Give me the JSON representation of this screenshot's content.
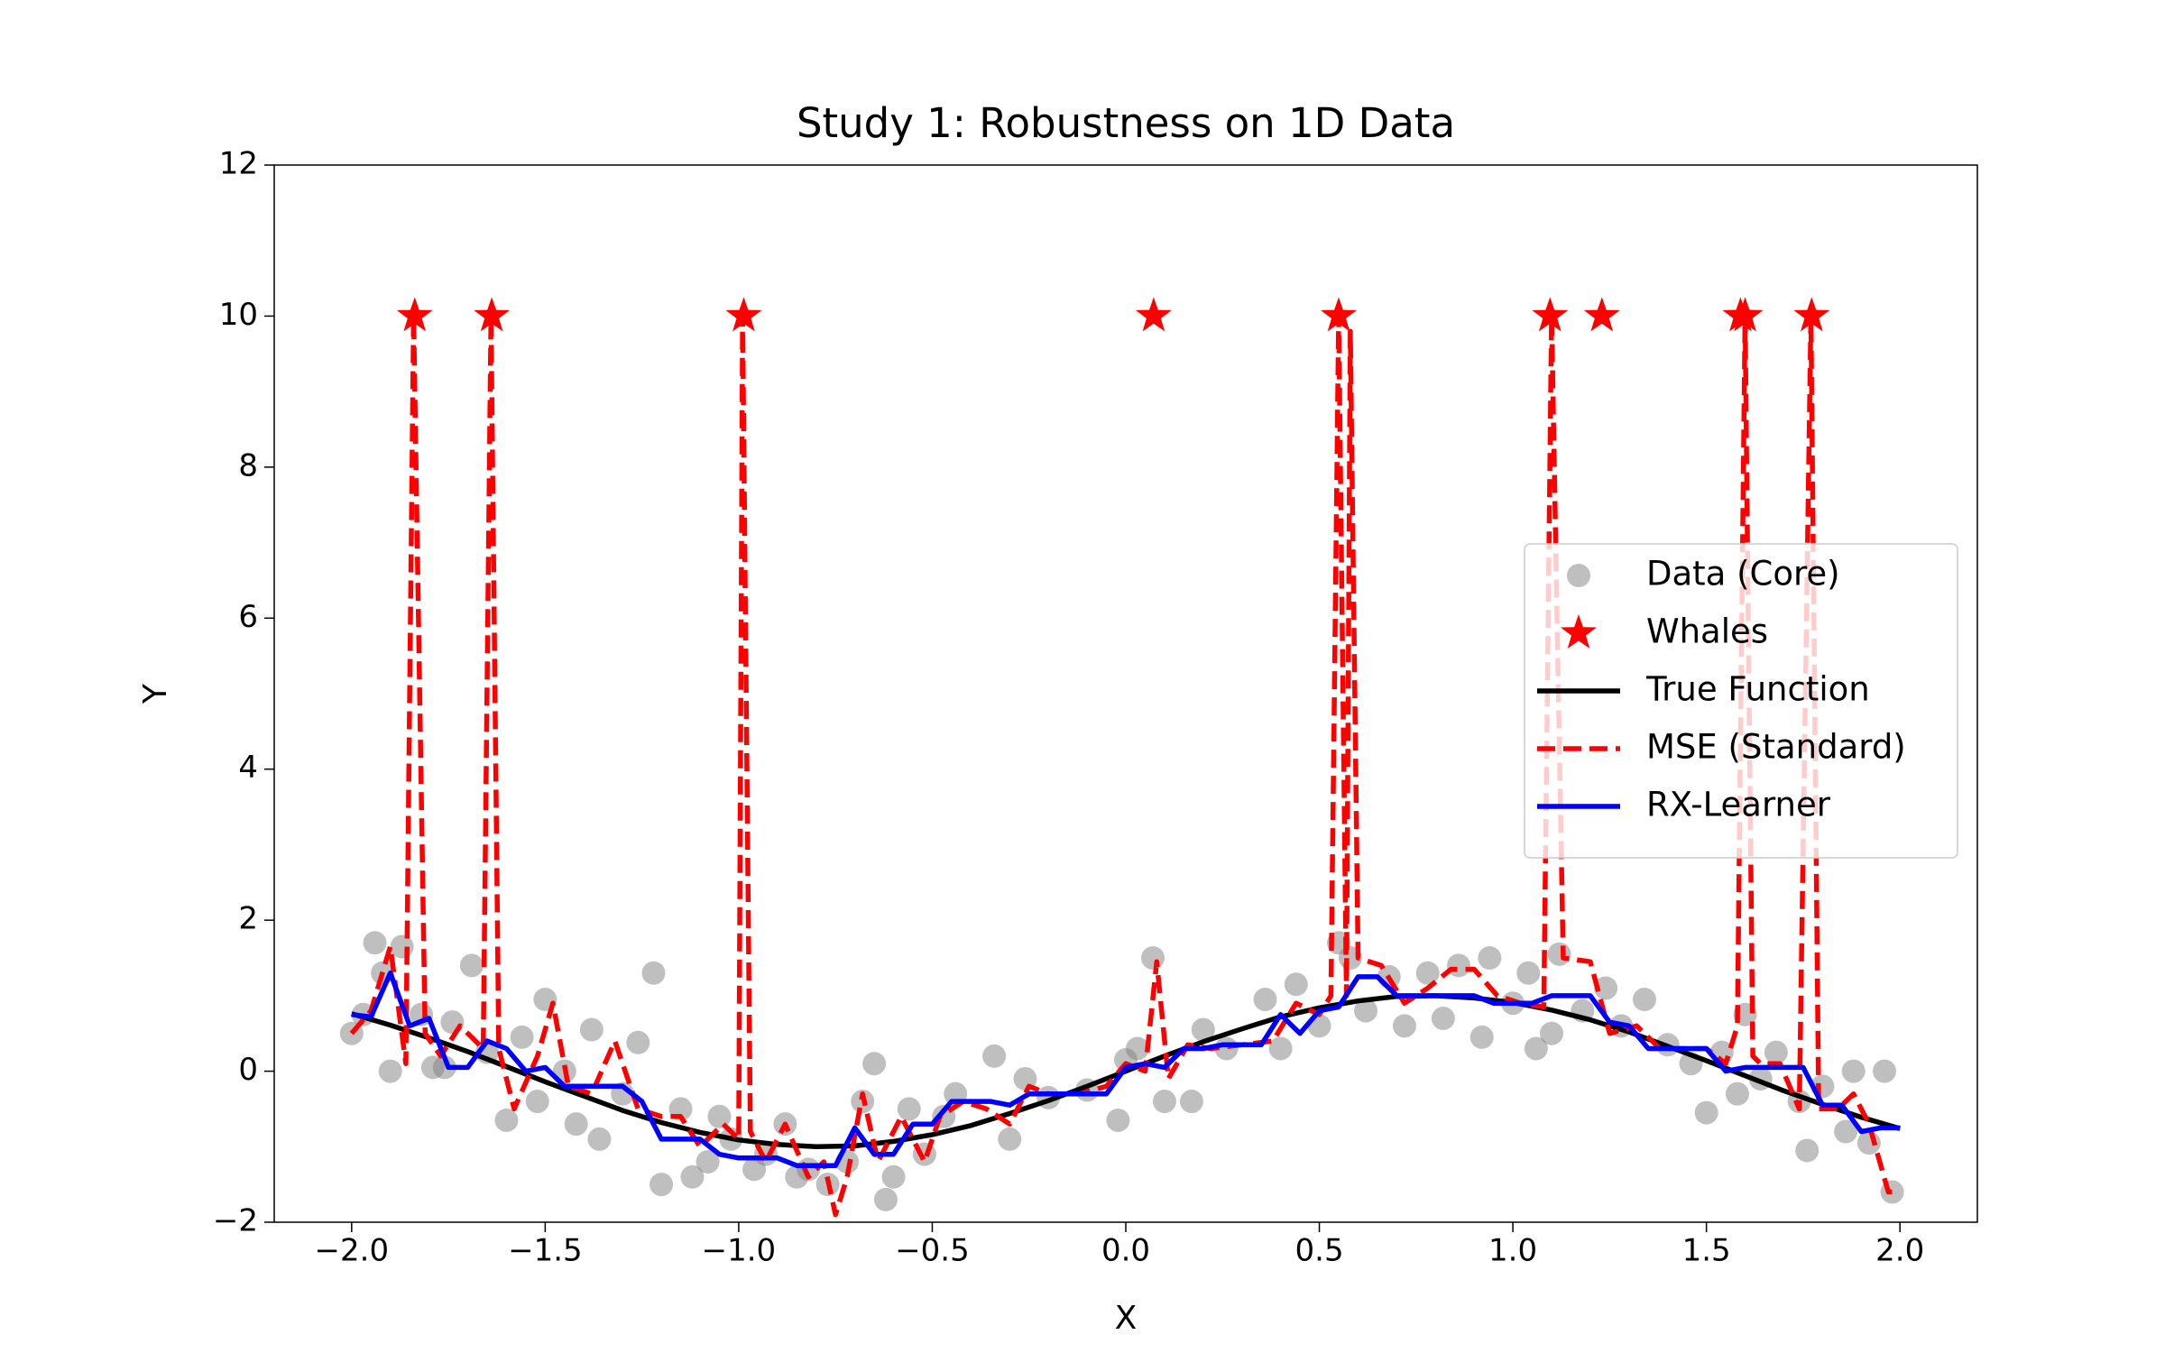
{
  "chart_data": {
    "type": "line",
    "title": "Study 1: Robustness on 1D Data",
    "x_label": "X",
    "y_label": "Y",
    "xlim": [
      -2.2,
      2.2
    ],
    "ylim": [
      -2,
      12
    ],
    "xticks": [
      {
        "value": -2.0,
        "label": "−2.0"
      },
      {
        "value": -1.5,
        "label": "−1.5"
      },
      {
        "value": -1.0,
        "label": "−1.0"
      },
      {
        "value": -0.5,
        "label": "−0.5"
      },
      {
        "value": 0.0,
        "label": "0.0"
      },
      {
        "value": 0.5,
        "label": "0.5"
      },
      {
        "value": 1.0,
        "label": "1.0"
      },
      {
        "value": 1.5,
        "label": "1.5"
      },
      {
        "value": 2.0,
        "label": "2.0"
      }
    ],
    "yticks": [
      {
        "value": -2,
        "label": "−2"
      },
      0,
      2,
      4,
      6,
      8,
      10,
      12
    ],
    "grid": false,
    "legend": "center right",
    "series": [
      {
        "name": "Data (Core)",
        "type": "scatter",
        "marker": "circle",
        "color": "#808080",
        "alpha": 0.5,
        "x": [
          -2.0,
          -1.97,
          -1.94,
          -1.92,
          -1.9,
          -1.87,
          -1.82,
          -1.79,
          -1.76,
          -1.74,
          -1.69,
          -1.65,
          -1.6,
          -1.56,
          -1.52,
          -1.5,
          -1.45,
          -1.42,
          -1.38,
          -1.36,
          -1.3,
          -1.26,
          -1.22,
          -1.2,
          -1.15,
          -1.12,
          -1.08,
          -1.05,
          -1.02,
          -0.96,
          -0.93,
          -0.88,
          -0.85,
          -0.82,
          -0.77,
          -0.72,
          -0.68,
          -0.65,
          -0.62,
          -0.6,
          -0.56,
          -0.52,
          -0.47,
          -0.44,
          -0.34,
          -0.3,
          -0.26,
          -0.2,
          -0.1,
          -0.02,
          0.0,
          0.03,
          0.07,
          0.1,
          0.17,
          0.2,
          0.26,
          0.36,
          0.4,
          0.44,
          0.5,
          0.55,
          0.58,
          0.62,
          0.68,
          0.72,
          0.78,
          0.82,
          0.86,
          0.92,
          0.94,
          1.0,
          1.04,
          1.06,
          1.1,
          1.12,
          1.18,
          1.24,
          1.28,
          1.34,
          1.4,
          1.46,
          1.5,
          1.54,
          1.58,
          1.6,
          1.64,
          1.68,
          1.74,
          1.76,
          1.8,
          1.86,
          1.88,
          1.92,
          1.96,
          1.98
        ],
        "values": [
          0.5,
          0.75,
          1.7,
          1.3,
          0.0,
          1.65,
          0.75,
          0.05,
          0.05,
          0.65,
          1.4,
          0.25,
          -0.65,
          0.45,
          -0.4,
          0.95,
          0.0,
          -0.7,
          0.55,
          -0.9,
          -0.3,
          0.38,
          1.3,
          -1.5,
          -0.5,
          -1.4,
          -1.2,
          -0.6,
          -0.9,
          -1.3,
          -1.1,
          -0.7,
          -1.4,
          -1.3,
          -1.5,
          -1.2,
          -0.4,
          0.1,
          -1.7,
          -1.4,
          -0.5,
          -1.1,
          -0.6,
          -0.3,
          0.2,
          -0.9,
          -0.1,
          -0.35,
          -0.25,
          -0.65,
          0.15,
          0.3,
          1.5,
          -0.4,
          -0.4,
          0.55,
          0.3,
          0.95,
          0.3,
          1.15,
          0.6,
          1.7,
          1.5,
          0.8,
          1.25,
          0.6,
          1.3,
          0.7,
          1.4,
          0.45,
          1.5,
          0.9,
          1.3,
          0.3,
          0.5,
          1.55,
          0.8,
          1.1,
          0.6,
          0.95,
          0.35,
          0.1,
          -0.55,
          0.25,
          -0.3,
          0.75,
          -0.1,
          0.25,
          -0.4,
          -1.05,
          -0.2,
          -0.8,
          0.0,
          -0.95,
          0.0,
          -1.6
        ]
      },
      {
        "name": "Whales",
        "type": "scatter",
        "marker": "star",
        "color": "#ff0000",
        "alpha": 1,
        "x": [
          -1.837,
          -1.638,
          -0.987,
          0.072,
          0.55,
          1.096,
          1.23,
          1.588,
          1.6,
          1.772
        ],
        "values": [
          10,
          10,
          10,
          10,
          10,
          10,
          10,
          10,
          10,
          10
        ]
      },
      {
        "name": "True Function",
        "type": "line",
        "linestyle": "solid",
        "color": "#000000",
        "x": [
          -2.0,
          -1.9,
          -1.8,
          -1.7,
          -1.6,
          -1.5,
          -1.4,
          -1.3,
          -1.2,
          -1.1,
          -1.0,
          -0.9,
          -0.8,
          -0.7,
          -0.6,
          -0.5,
          -0.4,
          -0.3,
          -0.2,
          -0.1,
          0.0,
          0.1,
          0.2,
          0.3,
          0.4,
          0.5,
          0.6,
          0.7,
          0.8,
          0.9,
          1.0,
          1.1,
          1.2,
          1.3,
          1.4,
          1.5,
          1.6,
          1.7,
          1.8,
          1.9,
          2.0
        ],
        "values": [
          0.76,
          0.61,
          0.44,
          0.26,
          0.06,
          -0.14,
          -0.33,
          -0.52,
          -0.68,
          -0.81,
          -0.91,
          -0.97,
          -1.0,
          -0.99,
          -0.93,
          -0.84,
          -0.72,
          -0.56,
          -0.39,
          -0.2,
          0.0,
          0.2,
          0.39,
          0.56,
          0.72,
          0.84,
          0.93,
          0.99,
          1.0,
          0.97,
          0.91,
          0.81,
          0.68,
          0.52,
          0.33,
          0.14,
          -0.06,
          -0.26,
          -0.44,
          -0.61,
          -0.76
        ]
      },
      {
        "name": "MSE (Standard)",
        "type": "line",
        "linestyle": "dashed",
        "color": "#ff0000",
        "x": [
          -2.0,
          -1.95,
          -1.9,
          -1.86,
          -1.84,
          -1.81,
          -1.77,
          -1.72,
          -1.66,
          -1.64,
          -1.62,
          -1.58,
          -1.52,
          -1.48,
          -1.44,
          -1.38,
          -1.32,
          -1.26,
          -1.2,
          -1.15,
          -1.1,
          -1.04,
          -1.0,
          -0.99,
          -0.97,
          -0.93,
          -0.88,
          -0.82,
          -0.78,
          -0.75,
          -0.72,
          -0.68,
          -0.64,
          -0.58,
          -0.52,
          -0.48,
          -0.42,
          -0.36,
          -0.3,
          -0.25,
          -0.2,
          -0.12,
          -0.05,
          0.0,
          0.05,
          0.08,
          0.11,
          0.16,
          0.22,
          0.3,
          0.38,
          0.44,
          0.5,
          0.53,
          0.55,
          0.57,
          0.58,
          0.6,
          0.66,
          0.72,
          0.78,
          0.84,
          0.9,
          0.96,
          1.02,
          1.08,
          1.1,
          1.13,
          1.2,
          1.25,
          1.32,
          1.38,
          1.44,
          1.5,
          1.55,
          1.58,
          1.6,
          1.62,
          1.64,
          1.69,
          1.74,
          1.77,
          1.79,
          1.84,
          1.88,
          1.92,
          1.97,
          2.0
        ],
        "values": [
          0.5,
          0.8,
          1.65,
          0.1,
          10,
          0.5,
          0.2,
          0.6,
          0.3,
          10,
          0.3,
          -0.5,
          0.2,
          0.9,
          -0.2,
          -0.3,
          0.4,
          -0.5,
          -0.6,
          -0.6,
          -1.0,
          -0.7,
          -0.9,
          10,
          -0.8,
          -1.2,
          -0.7,
          -1.4,
          -1.2,
          -1.9,
          -1.4,
          -0.3,
          -1.2,
          -0.6,
          -1.2,
          -0.6,
          -0.4,
          -0.5,
          -0.7,
          -0.2,
          -0.3,
          -0.3,
          -0.2,
          0.1,
          0.0,
          1.45,
          -0.1,
          0.35,
          0.3,
          0.35,
          0.4,
          0.9,
          0.75,
          1.0,
          10,
          1.0,
          9.8,
          1.5,
          1.4,
          0.9,
          1.1,
          1.35,
          1.35,
          1.0,
          0.9,
          0.85,
          10,
          1.5,
          1.45,
          0.5,
          0.6,
          0.3,
          0.3,
          0.3,
          0.1,
          0.6,
          10,
          0.2,
          0.1,
          0.1,
          -0.5,
          10,
          -0.5,
          -0.5,
          -0.3,
          -0.7,
          -1.6,
          -1.6
        ]
      },
      {
        "name": "RX-Learner",
        "type": "line",
        "linestyle": "solid",
        "color": "#0000ff",
        "x": [
          -2.0,
          -1.95,
          -1.9,
          -1.85,
          -1.8,
          -1.75,
          -1.7,
          -1.65,
          -1.6,
          -1.55,
          -1.5,
          -1.45,
          -1.4,
          -1.35,
          -1.3,
          -1.25,
          -1.2,
          -1.15,
          -1.1,
          -1.05,
          -1.0,
          -0.95,
          -0.9,
          -0.85,
          -0.8,
          -0.75,
          -0.7,
          -0.65,
          -0.6,
          -0.55,
          -0.5,
          -0.45,
          -0.4,
          -0.35,
          -0.3,
          -0.25,
          -0.2,
          -0.15,
          -0.1,
          -0.05,
          0.0,
          0.05,
          0.1,
          0.15,
          0.2,
          0.25,
          0.3,
          0.35,
          0.4,
          0.45,
          0.5,
          0.55,
          0.6,
          0.65,
          0.7,
          0.75,
          0.8,
          0.85,
          0.9,
          0.95,
          1.0,
          1.05,
          1.1,
          1.15,
          1.2,
          1.25,
          1.3,
          1.35,
          1.4,
          1.45,
          1.5,
          1.55,
          1.6,
          1.65,
          1.7,
          1.75,
          1.8,
          1.85,
          1.9,
          1.95,
          2.0
        ],
        "values": [
          0.75,
          0.72,
          1.3,
          0.6,
          0.7,
          0.05,
          0.05,
          0.4,
          0.3,
          0.0,
          0.05,
          -0.2,
          -0.2,
          -0.2,
          -0.2,
          -0.4,
          -0.9,
          -0.9,
          -0.9,
          -1.1,
          -1.15,
          -1.15,
          -1.15,
          -1.25,
          -1.25,
          -1.25,
          -0.75,
          -1.1,
          -1.1,
          -0.7,
          -0.7,
          -0.4,
          -0.4,
          -0.4,
          -0.45,
          -0.3,
          -0.3,
          -0.3,
          -0.3,
          -0.3,
          0.05,
          0.1,
          0.05,
          0.3,
          0.3,
          0.35,
          0.35,
          0.35,
          0.75,
          0.5,
          0.8,
          0.85,
          1.25,
          1.25,
          1.0,
          1.0,
          1.0,
          1.0,
          1.0,
          0.9,
          0.9,
          0.9,
          1.0,
          1.0,
          1.0,
          0.65,
          0.6,
          0.3,
          0.3,
          0.3,
          0.3,
          0.0,
          0.05,
          0.05,
          0.05,
          0.05,
          -0.45,
          -0.45,
          -0.8,
          -0.75,
          -0.75
        ]
      }
    ]
  }
}
